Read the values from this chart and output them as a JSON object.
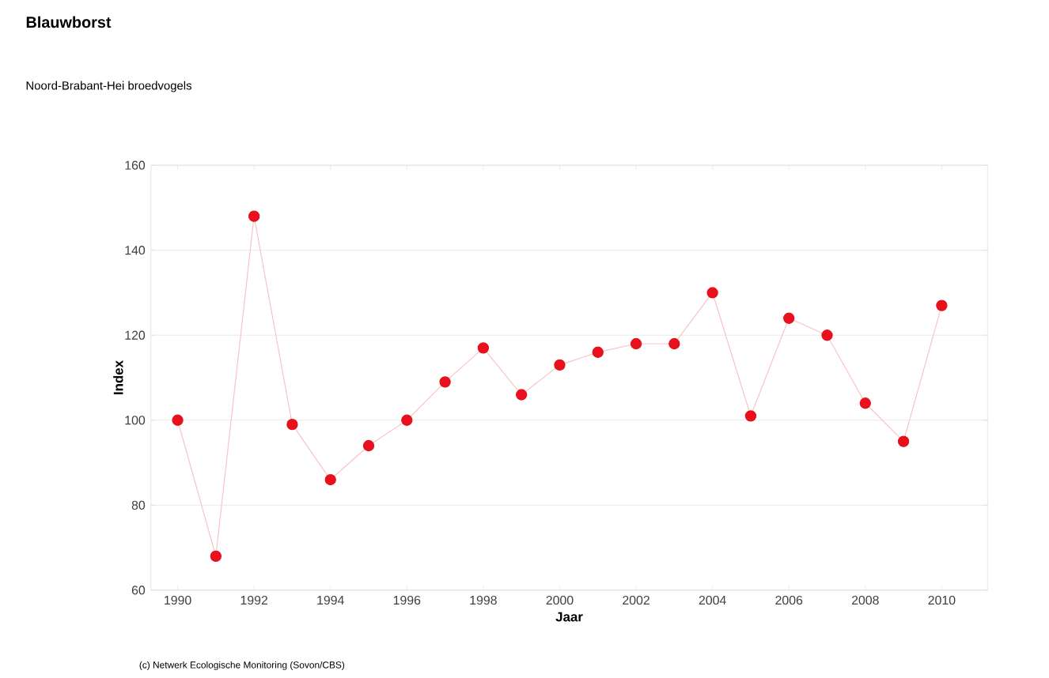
{
  "chart_data": {
    "type": "line",
    "title": "Blauwborst",
    "subtitle": "Noord-Brabant-Hei broedvogels",
    "xlabel": "Jaar",
    "ylabel": "Index",
    "x": [
      1990,
      1991,
      1992,
      1993,
      1994,
      1995,
      1996,
      1997,
      1998,
      1999,
      2000,
      2001,
      2002,
      2003,
      2004,
      2005,
      2006,
      2007,
      2008,
      2009,
      2010
    ],
    "series": [
      {
        "color": "#e8101c",
        "values": [
          100,
          68,
          148,
          99,
          86,
          94,
          100,
          109,
          117,
          106,
          113,
          116,
          118,
          118,
          130,
          101,
          124,
          120,
          104,
          95,
          127
        ]
      }
    ],
    "xlim": [
      1989.3,
      2011.2
    ],
    "xticks": [
      1990,
      1992,
      1994,
      1996,
      1998,
      2000,
      2002,
      2004,
      2006,
      2008,
      2010
    ],
    "ylim": [
      60,
      160
    ],
    "yticks": [
      60,
      80,
      100,
      120,
      140,
      160
    ],
    "grid": "y",
    "marker": "circle",
    "line_style": "solid",
    "annotations": [
      "(c) Netwerk Ecologische Monitoring (Sovon/CBS)"
    ]
  }
}
